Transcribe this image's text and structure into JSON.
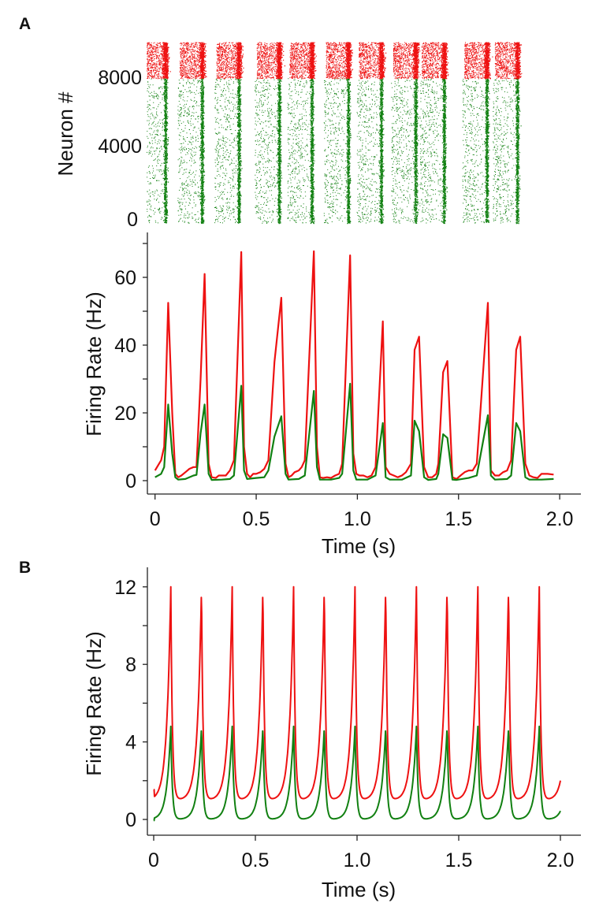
{
  "colors": {
    "excitatory": "#118011",
    "inhibitory": "#ee1111",
    "axis": "#222222"
  },
  "chart_data": [
    {
      "panel": "A",
      "type": "scatter",
      "subtype": "raster",
      "ylabel": "Neuron #",
      "yticks": [
        "0",
        "4000",
        "8000"
      ],
      "ylim": [
        0,
        10000
      ],
      "xlim": [
        0,
        2.0
      ],
      "populations": [
        {
          "range": [
            0,
            8000
          ],
          "color": "#118011"
        },
        {
          "range": [
            8000,
            10000
          ],
          "color": "#ee1111"
        }
      ],
      "burst_times": [
        0.065,
        0.245,
        0.426,
        0.624,
        0.785,
        0.964,
        1.126,
        1.295,
        1.435,
        1.645,
        1.795
      ]
    },
    {
      "panel": "A",
      "type": "line",
      "xlabel": "Time (s)",
      "ylabel": "Firing Rate (Hz)",
      "xlim": [
        0,
        2.0
      ],
      "ylim": [
        0,
        70
      ],
      "xticks": [
        "0",
        "0.5",
        "1.0",
        "1.5",
        "2.0"
      ],
      "yticks": [
        "0",
        "20",
        "40",
        "60"
      ],
      "series": [
        {
          "color": "#ee1111",
          "points": [
            [
              0.0,
              3
            ],
            [
              0.03,
              6
            ],
            [
              0.045,
              10
            ],
            [
              0.065,
              52.5
            ],
            [
              0.085,
              20
            ],
            [
              0.1,
              2
            ],
            [
              0.115,
              1
            ],
            [
              0.13,
              1.5
            ],
            [
              0.15,
              2.5
            ],
            [
              0.17,
              3.5
            ],
            [
              0.19,
              4
            ],
            [
              0.205,
              4
            ],
            [
              0.225,
              30
            ],
            [
              0.245,
              61
            ],
            [
              0.265,
              5
            ],
            [
              0.28,
              1
            ],
            [
              0.3,
              0.8
            ],
            [
              0.315,
              1.5
            ],
            [
              0.33,
              1.5
            ],
            [
              0.35,
              1.5
            ],
            [
              0.37,
              3
            ],
            [
              0.39,
              6
            ],
            [
              0.426,
              67.5
            ],
            [
              0.44,
              10
            ],
            [
              0.455,
              2
            ],
            [
              0.47,
              1
            ],
            [
              0.485,
              2
            ],
            [
              0.5,
              2
            ],
            [
              0.52,
              2.5
            ],
            [
              0.54,
              3.5
            ],
            [
              0.56,
              6
            ],
            [
              0.59,
              35
            ],
            [
              0.624,
              54
            ],
            [
              0.645,
              5
            ],
            [
              0.66,
              1
            ],
            [
              0.675,
              1.5
            ],
            [
              0.69,
              2.5
            ],
            [
              0.71,
              3
            ],
            [
              0.725,
              4
            ],
            [
              0.74,
              6
            ],
            [
              0.785,
              67.7
            ],
            [
              0.8,
              10
            ],
            [
              0.815,
              1
            ],
            [
              0.83,
              0.8
            ],
            [
              0.85,
              1
            ],
            [
              0.87,
              0.8
            ],
            [
              0.89,
              1.5
            ],
            [
              0.91,
              2
            ],
            [
              0.925,
              5
            ],
            [
              0.964,
              66.5
            ],
            [
              0.98,
              8
            ],
            [
              0.995,
              2
            ],
            [
              1.01,
              1.5
            ],
            [
              1.03,
              1.5
            ],
            [
              1.05,
              1
            ],
            [
              1.07,
              1.5
            ],
            [
              1.09,
              4
            ],
            [
              1.126,
              47
            ],
            [
              1.14,
              4
            ],
            [
              1.16,
              2
            ],
            [
              1.18,
              1.5
            ],
            [
              1.2,
              1
            ],
            [
              1.22,
              1.5
            ],
            [
              1.24,
              2.5
            ],
            [
              1.265,
              5
            ],
            [
              1.283,
              38.6
            ],
            [
              1.305,
              42.5
            ],
            [
              1.33,
              4
            ],
            [
              1.35,
              1
            ],
            [
              1.37,
              1
            ],
            [
              1.39,
              2
            ],
            [
              1.4,
              5
            ],
            [
              1.424,
              32
            ],
            [
              1.445,
              35.3
            ],
            [
              1.47,
              1
            ],
            [
              1.49,
              0.5
            ],
            [
              1.51,
              1.5
            ],
            [
              1.53,
              2.5
            ],
            [
              1.55,
              3
            ],
            [
              1.57,
              3
            ],
            [
              1.59,
              5
            ],
            [
              1.645,
              52.5
            ],
            [
              1.66,
              3
            ],
            [
              1.68,
              1.5
            ],
            [
              1.7,
              1.5
            ],
            [
              1.72,
              2.5
            ],
            [
              1.74,
              3
            ],
            [
              1.76,
              6
            ],
            [
              1.785,
              38.6
            ],
            [
              1.805,
              42.5
            ],
            [
              1.83,
              5
            ],
            [
              1.85,
              1.5
            ],
            [
              1.87,
              1
            ],
            [
              1.89,
              0.8
            ],
            [
              1.91,
              2
            ],
            [
              1.94,
              2
            ],
            [
              1.97,
              1.8
            ]
          ]
        },
        {
          "color": "#118011",
          "points": [
            [
              0.0,
              1
            ],
            [
              0.03,
              2
            ],
            [
              0.045,
              4
            ],
            [
              0.065,
              22.5
            ],
            [
              0.085,
              8
            ],
            [
              0.1,
              1
            ],
            [
              0.115,
              0.3
            ],
            [
              0.15,
              0.5
            ],
            [
              0.19,
              1.5
            ],
            [
              0.205,
              1.7
            ],
            [
              0.225,
              14
            ],
            [
              0.245,
              22.5
            ],
            [
              0.265,
              2
            ],
            [
              0.28,
              0.2
            ],
            [
              0.33,
              0.3
            ],
            [
              0.37,
              0.5
            ],
            [
              0.39,
              1.5
            ],
            [
              0.426,
              28
            ],
            [
              0.44,
              3
            ],
            [
              0.455,
              0.5
            ],
            [
              0.5,
              0.8
            ],
            [
              0.54,
              1
            ],
            [
              0.56,
              3
            ],
            [
              0.59,
              13
            ],
            [
              0.624,
              19
            ],
            [
              0.645,
              2
            ],
            [
              0.66,
              0.3
            ],
            [
              0.71,
              0.5
            ],
            [
              0.74,
              1.5
            ],
            [
              0.785,
              26.5
            ],
            [
              0.8,
              4
            ],
            [
              0.815,
              0.3
            ],
            [
              0.87,
              0.3
            ],
            [
              0.91,
              0.8
            ],
            [
              0.925,
              2
            ],
            [
              0.964,
              28.6
            ],
            [
              0.98,
              3
            ],
            [
              0.995,
              0.3
            ],
            [
              1.05,
              0.3
            ],
            [
              1.09,
              1.5
            ],
            [
              1.126,
              17
            ],
            [
              1.14,
              1
            ],
            [
              1.16,
              0.3
            ],
            [
              1.22,
              0.3
            ],
            [
              1.265,
              1.5
            ],
            [
              1.283,
              17.7
            ],
            [
              1.305,
              14.6
            ],
            [
              1.33,
              1
            ],
            [
              1.35,
              0.2
            ],
            [
              1.39,
              0.5
            ],
            [
              1.4,
              2
            ],
            [
              1.424,
              13.7
            ],
            [
              1.445,
              12.6
            ],
            [
              1.47,
              0.3
            ],
            [
              1.49,
              0.2
            ],
            [
              1.55,
              0.8
            ],
            [
              1.59,
              1.5
            ],
            [
              1.645,
              19.3
            ],
            [
              1.66,
              1.5
            ],
            [
              1.68,
              0.3
            ],
            [
              1.74,
              0.5
            ],
            [
              1.76,
              1.5
            ],
            [
              1.785,
              17
            ],
            [
              1.805,
              14.6
            ],
            [
              1.83,
              1
            ],
            [
              1.85,
              0.3
            ],
            [
              1.91,
              0.3
            ],
            [
              1.97,
              0.5
            ]
          ]
        }
      ]
    },
    {
      "panel": "B",
      "type": "line",
      "xlabel": "Time (s)",
      "ylabel": "Firing Rate (Hz)",
      "xlim": [
        0,
        2.0
      ],
      "ylim": [
        0,
        12
      ],
      "xticks": [
        "0",
        "0.5",
        "1.0",
        "1.5",
        "2.0"
      ],
      "yticks": [
        "0",
        "4",
        "8",
        "12"
      ],
      "peak_times": [
        0.084,
        0.235,
        0.386,
        0.537,
        0.688,
        0.839,
        0.99,
        1.141,
        1.292,
        1.443,
        1.594,
        1.745,
        1.896
      ],
      "series": [
        {
          "color": "#ee1111",
          "peak": 12,
          "trough": 1.0
        },
        {
          "color": "#118011",
          "peak": 4.8,
          "trough": 0.0
        }
      ]
    }
  ],
  "labels": {
    "panel_a": "A",
    "panel_b": "B"
  }
}
